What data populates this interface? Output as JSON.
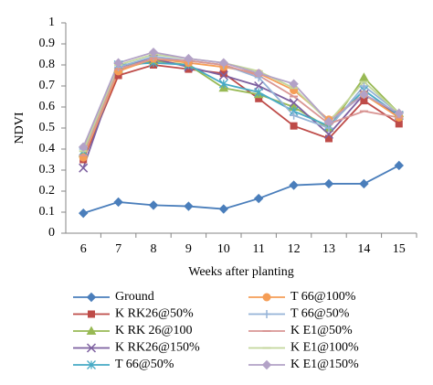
{
  "chart_data": {
    "type": "line",
    "x_label": "Weeks after planting",
    "y_label": "NDVI",
    "categories": [
      "6",
      "7",
      "8",
      "9",
      "10",
      "11",
      "12",
      "13",
      "14",
      "15"
    ],
    "ylim": [
      0,
      1
    ],
    "yticks": [
      0,
      0.1,
      0.2,
      0.3,
      0.4,
      0.5,
      0.6,
      0.7,
      0.8,
      0.9,
      1
    ],
    "grid": false,
    "series": [
      {
        "name": "Ground",
        "color": "#4a7ebb",
        "marker": "diamond",
        "values": [
          0.095,
          0.148,
          0.133,
          0.128,
          0.115,
          0.165,
          0.228,
          0.235,
          0.235,
          0.322
        ]
      },
      {
        "name": "K RK26@50%",
        "color": "#be4b48",
        "marker": "square",
        "values": [
          0.35,
          0.75,
          0.8,
          0.78,
          0.76,
          0.64,
          0.51,
          0.45,
          0.63,
          0.52
        ]
      },
      {
        "name": "K RK 26@100",
        "color": "#98b954",
        "marker": "triangle",
        "values": [
          0.38,
          0.78,
          0.82,
          0.8,
          0.69,
          0.66,
          0.6,
          0.5,
          0.74,
          0.57
        ]
      },
      {
        "name": "K RK26@150%",
        "color": "#7d60a0",
        "marker": "x",
        "values": [
          0.31,
          0.79,
          0.83,
          0.79,
          0.75,
          0.7,
          0.62,
          0.47,
          0.66,
          0.56
        ]
      },
      {
        "name": "T 66@50%",
        "color": "#46aac5",
        "marker": "star",
        "values": [
          0.39,
          0.8,
          0.81,
          0.8,
          0.71,
          0.67,
          0.58,
          0.51,
          0.68,
          0.56
        ]
      },
      {
        "name": "T 66@100%",
        "color": "#f59d56",
        "marker": "circle",
        "values": [
          0.36,
          0.77,
          0.83,
          0.81,
          0.79,
          0.76,
          0.68,
          0.54,
          0.66,
          0.55
        ]
      },
      {
        "name": "T 66@50%",
        "color": "#95b3d7",
        "marker": "plus",
        "values": [
          0.4,
          0.79,
          0.84,
          0.82,
          0.8,
          0.74,
          0.56,
          0.5,
          0.7,
          0.57
        ]
      },
      {
        "name": "K E1@50%",
        "color": "#d99694",
        "marker": "dash",
        "values": [
          0.37,
          0.78,
          0.83,
          0.82,
          0.8,
          0.75,
          0.65,
          0.52,
          0.58,
          0.55
        ]
      },
      {
        "name": "K E1@100%",
        "color": "#c3d69b",
        "marker": "dash",
        "values": [
          0.39,
          0.8,
          0.85,
          0.83,
          0.81,
          0.77,
          0.69,
          0.53,
          0.72,
          0.57
        ]
      },
      {
        "name": "K E1@150%",
        "color": "#b3a2c7",
        "marker": "diamond",
        "values": [
          0.41,
          0.81,
          0.86,
          0.83,
          0.81,
          0.76,
          0.71,
          0.53,
          0.66,
          0.57
        ]
      }
    ]
  }
}
